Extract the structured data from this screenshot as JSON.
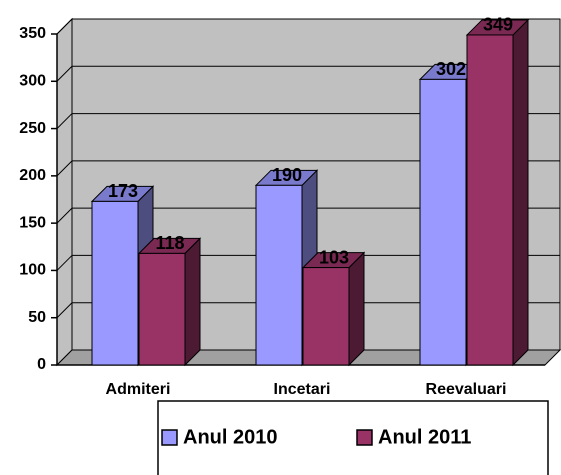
{
  "chart_data": {
    "type": "bar",
    "categories": [
      "Admiteri",
      "Incetari",
      "Reevaluari"
    ],
    "series": [
      {
        "name": "Anul 2010",
        "color": "#9999ff",
        "values": [
          173,
          190,
          302
        ]
      },
      {
        "name": "Anul 2011",
        "color": "#993366",
        "values": [
          118,
          103,
          349
        ]
      }
    ],
    "ylim": [
      0,
      350
    ],
    "yticks": [
      0,
      50,
      100,
      150,
      200,
      250,
      300,
      350
    ],
    "grid": true,
    "legend": "bottom"
  }
}
